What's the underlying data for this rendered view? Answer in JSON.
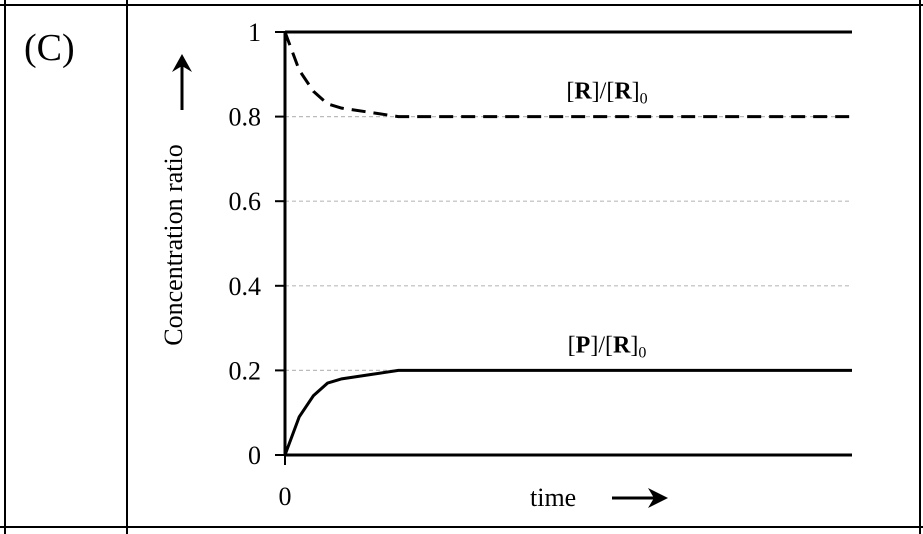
{
  "panel_label": "(C)",
  "chart_data": {
    "type": "line",
    "ylabel": "Concentration ratio",
    "xlabel": "time",
    "x": [
      0,
      0.25,
      0.5,
      0.75,
      1,
      1.5,
      2,
      3,
      5,
      10
    ],
    "xlim": [
      0,
      10
    ],
    "xticks": [
      0
    ],
    "ylim": [
      0,
      1
    ],
    "yticks": [
      0,
      0.2,
      0.4,
      0.6,
      0.8,
      1
    ],
    "grid": true,
    "series": [
      {
        "name": "[R]/[R]0",
        "color": "#000000",
        "line_style": "dashed",
        "values": [
          1,
          0.91,
          0.86,
          0.83,
          0.82,
          0.81,
          0.8,
          0.8,
          0.8,
          0.8
        ]
      },
      {
        "name": "[P]/[R]0",
        "color": "#000000",
        "line_style": "solid",
        "values": [
          0,
          0.09,
          0.14,
          0.17,
          0.18,
          0.19,
          0.2,
          0.2,
          0.2,
          0.2
        ]
      }
    ]
  }
}
